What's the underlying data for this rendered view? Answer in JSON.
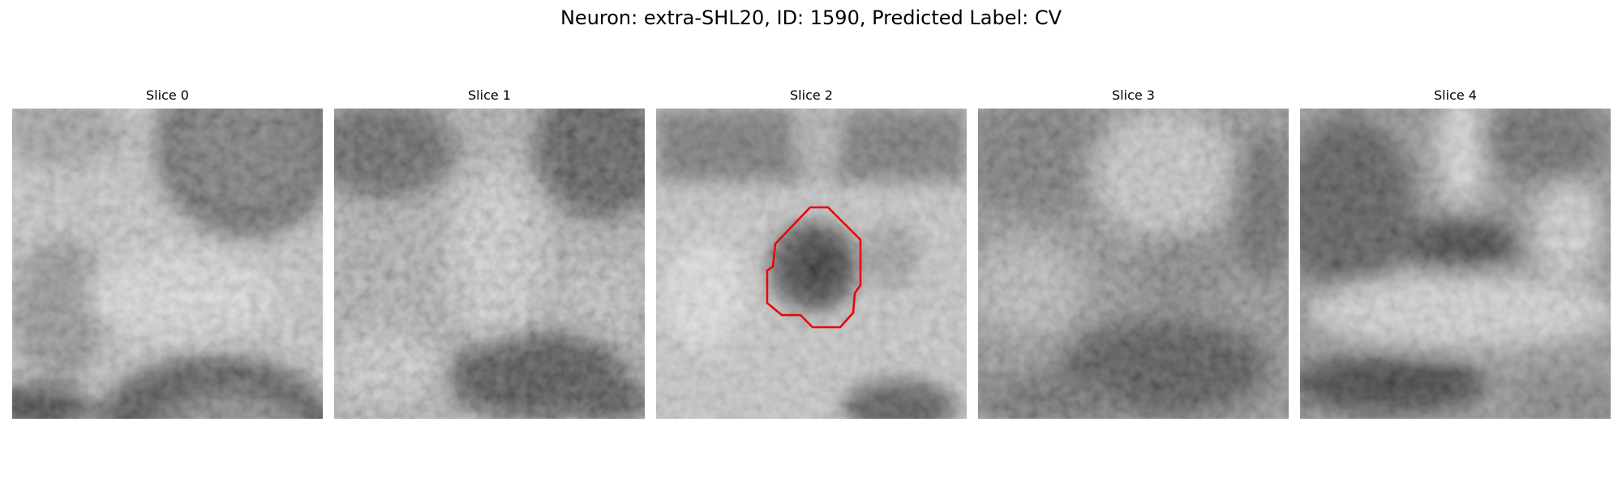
{
  "figure": {
    "title": "Neuron: extra-SHL20, ID: 1590, Predicted Label: CV"
  },
  "panels": [
    {
      "title": "Slice 0"
    },
    {
      "title": "Slice 1"
    },
    {
      "title": "Slice 2"
    },
    {
      "title": "Slice 3"
    },
    {
      "title": "Slice 4"
    }
  ],
  "colors": {
    "contour": "#ee0000",
    "colormap": "grayscale"
  }
}
